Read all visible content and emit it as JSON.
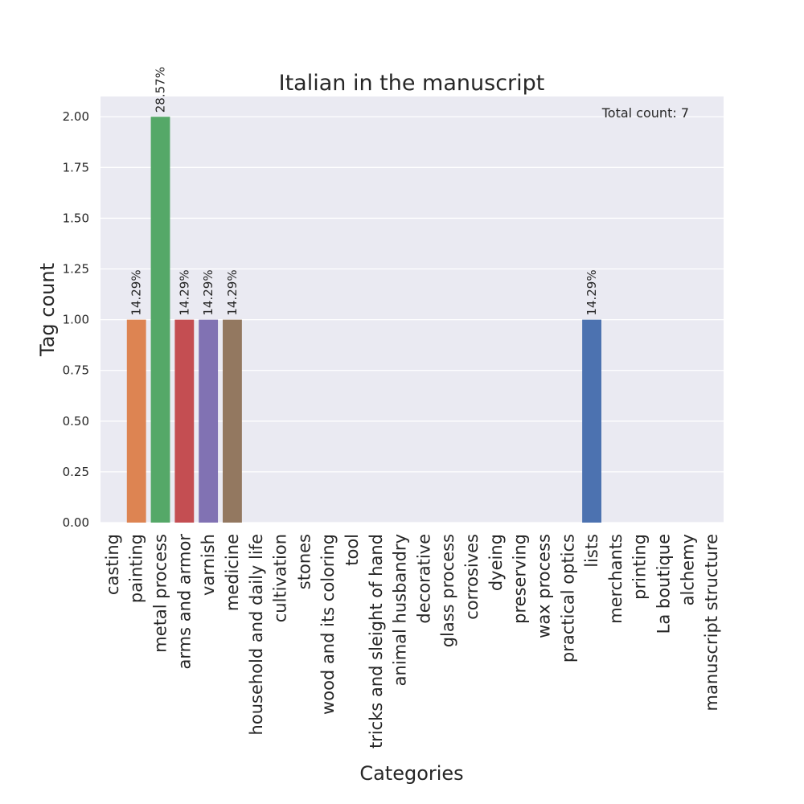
{
  "chart_data": {
    "type": "bar",
    "title": "Italian in the manuscript",
    "xlabel": "Categories",
    "ylabel": "Tag count",
    "ylim": [
      0,
      2.1
    ],
    "yticks": [
      "0.00",
      "0.25",
      "0.50",
      "0.75",
      "1.00",
      "1.25",
      "1.50",
      "1.75",
      "2.00"
    ],
    "grid": true,
    "legend": "none",
    "annotation": "Total count: 7",
    "categories": [
      "casting",
      "painting",
      "metal process",
      "arms and armor",
      "varnish",
      "medicine",
      "household and daily life",
      "cultivation",
      "stones",
      "wood and its coloring",
      "tool",
      "tricks and sleight of hand",
      "animal husbandry",
      "decorative",
      "glass process",
      "corrosives",
      "dyeing",
      "preserving",
      "wax process",
      "practical optics",
      "lists",
      "merchants",
      "printing",
      "La boutique",
      "alchemy",
      "manuscript structure"
    ],
    "values": [
      0,
      1,
      2,
      1,
      1,
      1,
      0,
      0,
      0,
      0,
      0,
      0,
      0,
      0,
      0,
      0,
      0,
      0,
      0,
      0,
      1,
      0,
      0,
      0,
      0,
      0
    ],
    "data_labels": [
      "",
      "14.29%",
      "28.57%",
      "14.29%",
      "14.29%",
      "14.29%",
      "",
      "",
      "",
      "",
      "",
      "",
      "",
      "",
      "",
      "",
      "",
      "",
      "",
      "",
      "14.29%",
      "",
      "",
      "",
      "",
      ""
    ],
    "colors": [
      "#4c72b0",
      "#dd8452",
      "#55a868",
      "#c44e52",
      "#8172b3",
      "#937860",
      "#da8bc3",
      "#8c8c8c",
      "#ccb974",
      "#64b5cd",
      "#4c72b0",
      "#dd8452",
      "#55a868",
      "#c44e52",
      "#8172b3",
      "#937860",
      "#da8bc3",
      "#8c8c8c",
      "#ccb974",
      "#64b5cd",
      "#4c72b0",
      "#dd8452",
      "#55a868",
      "#c44e52",
      "#8172b3",
      "#937860"
    ],
    "plot_background": "#eaeaf2",
    "grid_color": "#ffffff"
  }
}
